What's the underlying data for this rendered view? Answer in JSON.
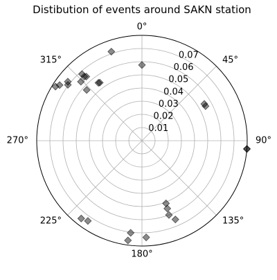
{
  "chart_data": {
    "type": "scatter",
    "projection": "polar",
    "title": "Distibution of events around SAKN station",
    "theta_zero_location": "N",
    "theta_direction": "clockwise",
    "theta_tick_labels": [
      "0°",
      "45°",
      "90°",
      "135°",
      "180°",
      "225°",
      "270°",
      "315°"
    ],
    "theta_tick_values": [
      0,
      45,
      90,
      135,
      180,
      225,
      270,
      315
    ],
    "r_tick_values": [
      0.01,
      0.02,
      0.03,
      0.04,
      0.05,
      0.06,
      0.07
    ],
    "r_tick_labels": [
      "0.01",
      "0.02",
      "0.03",
      "0.04",
      "0.05",
      "0.06",
      "0.07"
    ],
    "r_label_position_deg": 22.5,
    "rlim": [
      0,
      0.08
    ],
    "grid": true,
    "marker": "diamond",
    "marker_color": "#000000",
    "marker_alpha": 0.45,
    "grid_color": "#b0b0b0",
    "series": [
      {
        "points": [
          {
            "theta": 0.0,
            "r": 0.0575
          },
          {
            "theta": 341.0,
            "r": 0.0715
          },
          {
            "theta": 314.0,
            "r": 0.0645
          },
          {
            "theta": 312.5,
            "r": 0.057
          },
          {
            "theta": 307.0,
            "r": 0.0705
          },
          {
            "theta": 308.5,
            "r": 0.072
          },
          {
            "theta": 304.0,
            "r": 0.0755
          },
          {
            "theta": 302.0,
            "r": 0.0775
          },
          {
            "theta": 318.0,
            "r": 0.068
          },
          {
            "theta": 319.0,
            "r": 0.0645
          },
          {
            "theta": 318.0,
            "r": 0.0655
          },
          {
            "theta": 323.0,
            "r": 0.055
          },
          {
            "theta": 324.0,
            "r": 0.0545
          },
          {
            "theta": 59.5,
            "r": 0.055
          },
          {
            "theta": 61.5,
            "r": 0.055
          },
          {
            "theta": 94.5,
            "r": 0.08
          },
          {
            "theta": 94.5,
            "r": 0.08
          },
          {
            "theta": 159.5,
            "r": 0.055
          },
          {
            "theta": 159.0,
            "r": 0.051
          },
          {
            "theta": 160.0,
            "r": 0.06
          },
          {
            "theta": 157.0,
            "r": 0.065
          },
          {
            "theta": 177.5,
            "r": 0.0735
          },
          {
            "theta": 187.0,
            "r": 0.0705
          },
          {
            "theta": 188.0,
            "r": 0.0765
          },
          {
            "theta": 214.0,
            "r": 0.0735
          },
          {
            "theta": 218.0,
            "r": 0.075
          }
        ]
      }
    ]
  }
}
